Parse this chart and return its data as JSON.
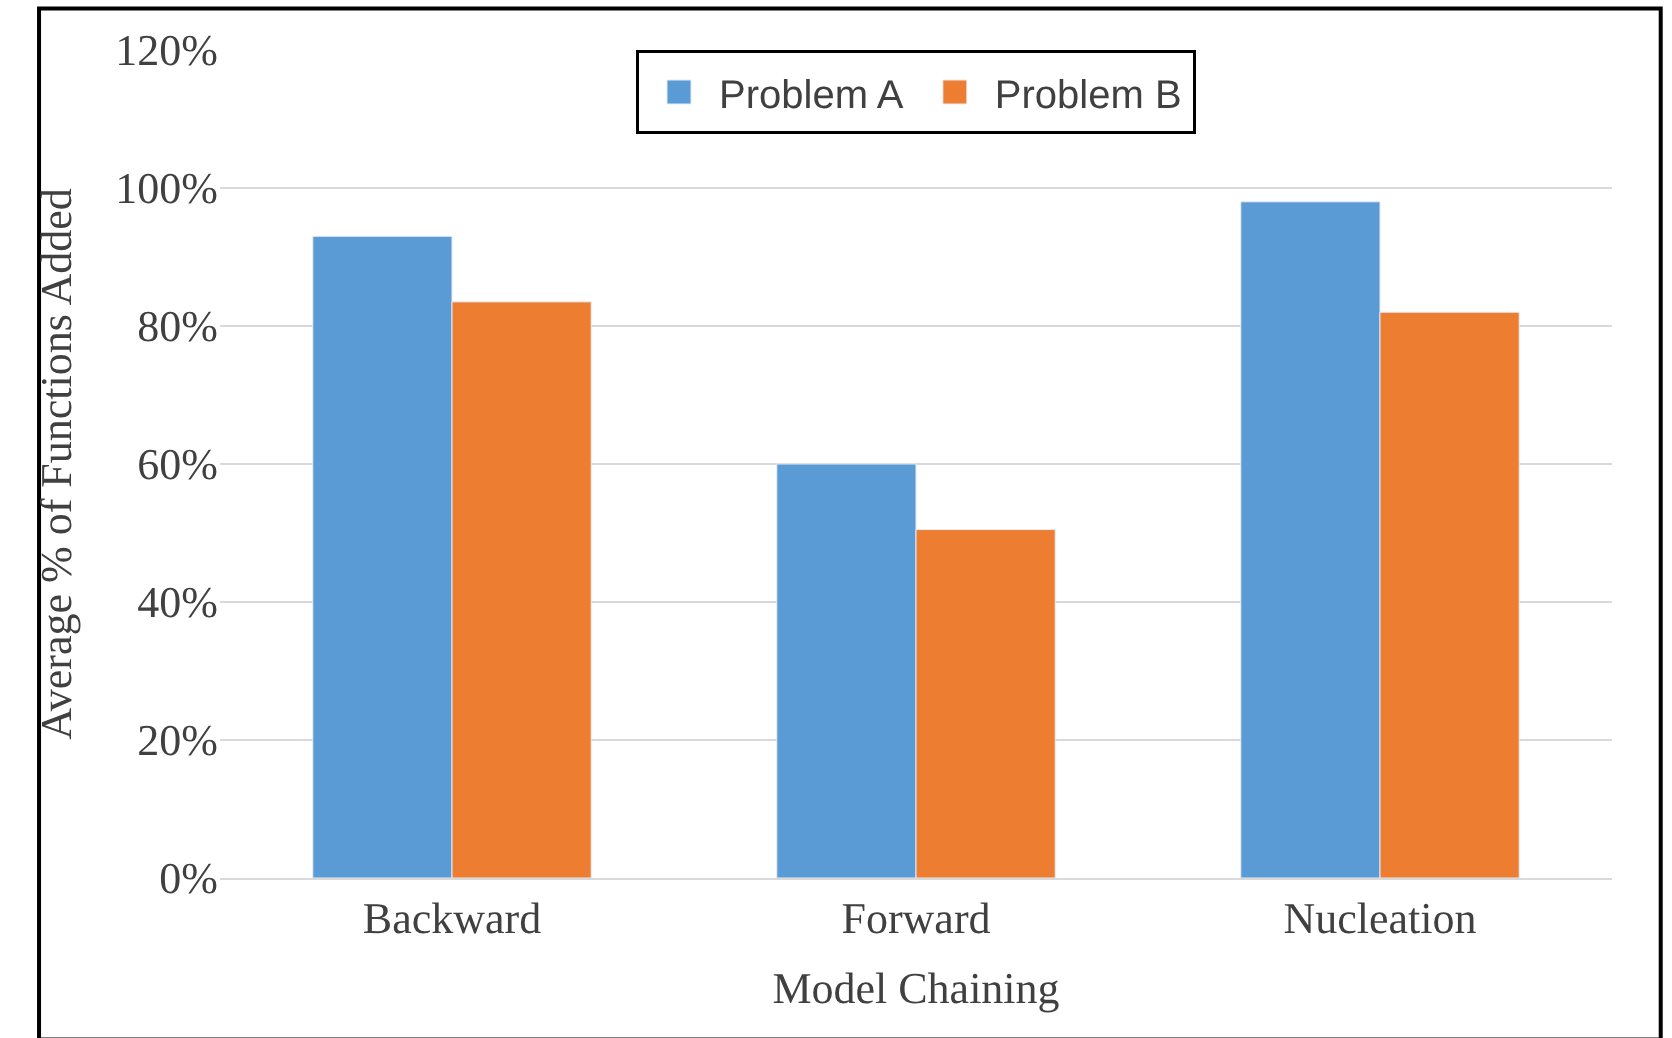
{
  "chart_data": {
    "type": "bar",
    "xlabel": "Model Chaining",
    "ylabel": "Average % of Functions Added",
    "categories": [
      "Backward",
      "Forward",
      "Nucleation"
    ],
    "series": [
      {
        "name": "Problem A",
        "color": "#5b9bd5",
        "values": [
          93,
          60,
          98
        ]
      },
      {
        "name": "Problem B",
        "color": "#ed7d31",
        "values": [
          83.5,
          50.5,
          82
        ]
      }
    ],
    "ylim": [
      0,
      120
    ],
    "yticks": [
      {
        "value": 0,
        "label": "0%"
      },
      {
        "value": 20,
        "label": "20%"
      },
      {
        "value": 40,
        "label": "40%"
      },
      {
        "value": 60,
        "label": "60%"
      },
      {
        "value": 80,
        "label": "80%"
      },
      {
        "value": 100,
        "label": "100%"
      },
      {
        "value": 120,
        "label": "120%"
      }
    ],
    "grid": "y",
    "legend": "top"
  }
}
